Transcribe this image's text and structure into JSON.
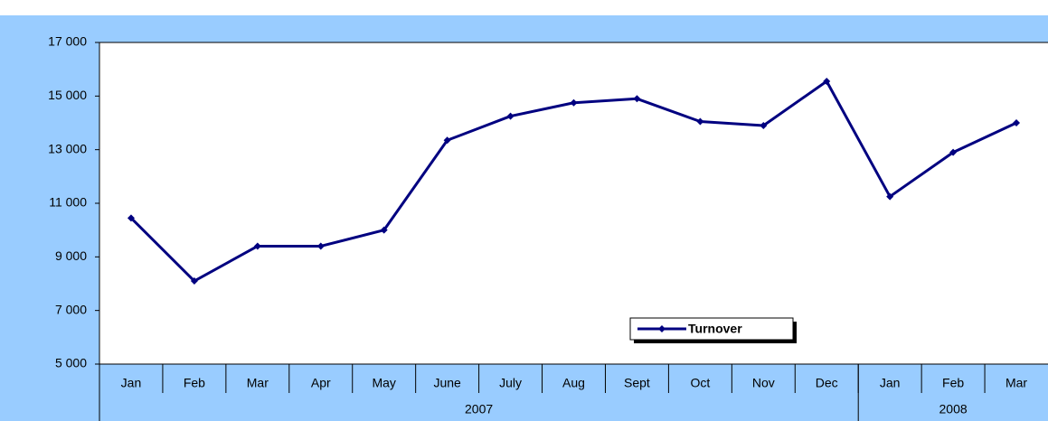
{
  "chart_data": {
    "type": "line",
    "groups": [
      {
        "name": "2007",
        "categories": [
          "Jan",
          "Feb",
          "Mar",
          "Apr",
          "May",
          "June",
          "July",
          "Aug",
          "Sept",
          "Oct",
          "Nov",
          "Dec"
        ]
      },
      {
        "name": "2008",
        "categories": [
          "Jan",
          "Feb",
          "Mar"
        ]
      }
    ],
    "series": [
      {
        "name": "Turnover",
        "color": "#000080",
        "values": [
          10450,
          8100,
          9400,
          9400,
          10000,
          13350,
          14250,
          14750,
          14900,
          14050,
          13900,
          15550,
          11250,
          12900,
          14000
        ]
      }
    ],
    "ylim": [
      5000,
      17000
    ],
    "yticks": [
      {
        "value": 5000,
        "label": "5 000"
      },
      {
        "value": 7000,
        "label": "7 000"
      },
      {
        "value": 9000,
        "label": "9 000"
      },
      {
        "value": 11000,
        "label": "11 000"
      },
      {
        "value": 13000,
        "label": "13 000"
      },
      {
        "value": 15000,
        "label": "15 000"
      },
      {
        "value": 17000,
        "label": "17 000"
      }
    ],
    "grid": false,
    "legend": "bottom-right"
  }
}
